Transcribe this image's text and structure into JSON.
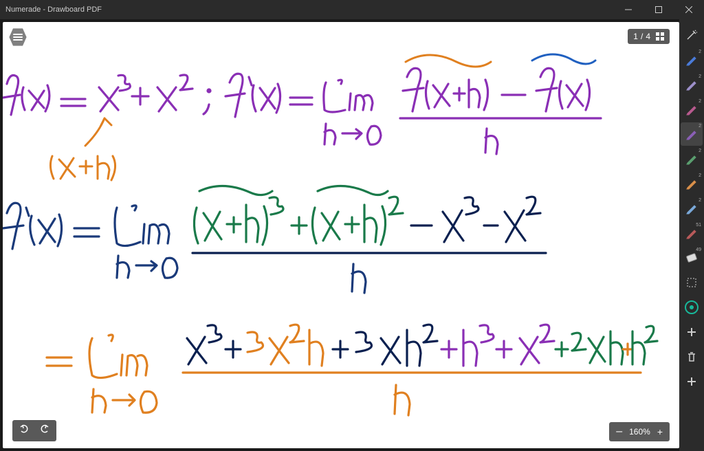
{
  "window": {
    "title": "Numerade - Drawboard PDF"
  },
  "page_indicator": {
    "current": "1",
    "total": "4",
    "sep": "/"
  },
  "zoom": {
    "level": "160%",
    "minus": "–",
    "plus": "+"
  },
  "toolbar": {
    "tools": [
      {
        "type": "wand",
        "color": "#cccccc",
        "badge": ""
      },
      {
        "type": "pen",
        "color": "#4a7bd8",
        "badge": "2"
      },
      {
        "type": "pen",
        "color": "#9c8fc9",
        "badge": "2"
      },
      {
        "type": "pen",
        "color": "#b85a8f",
        "badge": "2"
      },
      {
        "type": "pen",
        "color": "#8a5fb5",
        "badge": "2",
        "active": true
      },
      {
        "type": "pen",
        "color": "#5a9e6f",
        "badge": "2"
      },
      {
        "type": "pen",
        "color": "#d88f4a",
        "badge": "2"
      },
      {
        "type": "pen",
        "color": "#7aa8d8",
        "badge": "2"
      },
      {
        "type": "pen",
        "color": "#b85a5a",
        "badge": "51"
      },
      {
        "type": "eraser",
        "color": "#dddddd",
        "badge": "49"
      },
      {
        "type": "select",
        "color": "#999999",
        "badge": ""
      },
      {
        "type": "gear",
        "color": "#18b89a",
        "badge": ""
      },
      {
        "type": "plus",
        "color": "#cccccc",
        "badge": ""
      },
      {
        "type": "trash",
        "color": "#cccccc",
        "badge": ""
      },
      {
        "type": "plus",
        "color": "#cccccc",
        "badge": ""
      }
    ]
  },
  "canvas": {
    "background": "#ffffff",
    "strokes": {
      "colors": {
        "purple": "#8a2fb5",
        "orange": "#e08020",
        "navy": "#1a3a7a",
        "darknavy": "#0a2050",
        "green": "#1a7a4a",
        "blue": "#2060c0"
      },
      "stroke_width": 3.2
    }
  }
}
